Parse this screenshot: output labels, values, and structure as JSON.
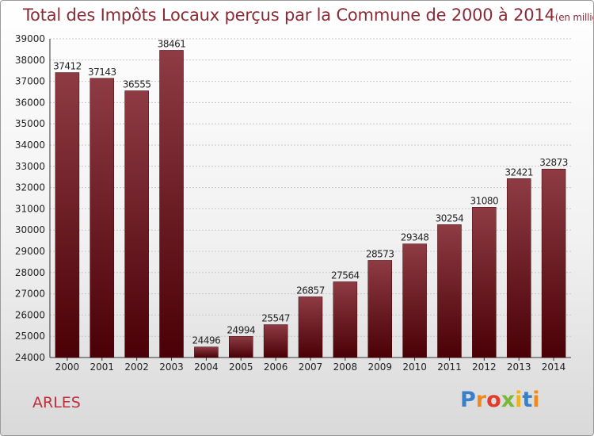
{
  "title": "Total des Impôts Locaux perçus par la Commune de 2000 à 2014",
  "unit_note": "(en milliers d'€)",
  "commune": "ARLES",
  "brand": "Proxiti",
  "colors": {
    "bar_top": "#8e3b44",
    "bar_bottom": "#4a0006",
    "title": "#8a2a35",
    "commune": "#c0303c"
  },
  "chart_data": {
    "type": "bar",
    "title": "Total des Impôts Locaux perçus par la Commune de 2000 à 2014",
    "categories": [
      "2000",
      "2001",
      "2002",
      "2003",
      "2004",
      "2005",
      "2006",
      "2007",
      "2008",
      "2009",
      "2010",
      "2011",
      "2012",
      "2013",
      "2014"
    ],
    "values": [
      37412,
      37143,
      36555,
      38461,
      24496,
      24994,
      25547,
      26857,
      27564,
      28573,
      29348,
      30254,
      31080,
      32421,
      32873
    ],
    "ylim": [
      24000,
      39000
    ],
    "yticks": [
      24000,
      25000,
      26000,
      27000,
      28000,
      29000,
      30000,
      31000,
      32000,
      33000,
      34000,
      35000,
      36000,
      37000,
      38000,
      39000
    ],
    "grid": true,
    "xlabel": "",
    "ylabel": ""
  }
}
